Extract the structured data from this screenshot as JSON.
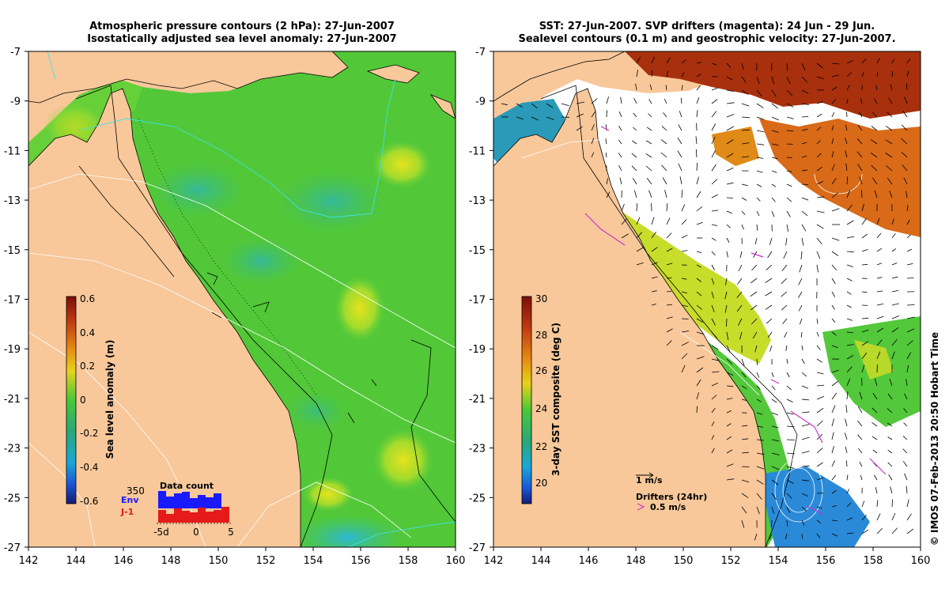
{
  "left_panel": {
    "title_line1": "Atmospheric pressure contours (2 hPa): 27-Jun-2007",
    "title_line2": "Isostatically adjusted sea level anomaly: 27-Jun-2007",
    "colorbar": {
      "label": "Sea level anomaly (m)",
      "ticks": [
        "0.6",
        "0.4",
        "0.2",
        "0",
        "-0.2",
        "-0.4",
        "-0.6"
      ]
    },
    "data_count": {
      "title": "Data count",
      "max_label": "350",
      "env_label": "Env",
      "j1_label": "J-1",
      "x_ticks": [
        "-5d",
        "0",
        "5"
      ],
      "env_color": "#1a1aff",
      "j1_color": "#e61a1a"
    }
  },
  "right_panel": {
    "title_line1": "SST: 27-Jun-2007. SVP drifters (magenta): 24 Jun - 29 Jun.",
    "title_line2": "Sealevel contours (0.1 m) and geostrophic velocity: 27-Jun-2007.",
    "colorbar": {
      "label": "3-day SST composite (deg C)",
      "ticks": [
        "30",
        "28",
        "26",
        "24",
        "22",
        "20"
      ]
    },
    "velocity_scale_label": "1 m/s",
    "drifters_label": "Drifters (24hr)",
    "drifter_scale_label": "0.5 m/s",
    "drifter_color": "#cc33cc"
  },
  "axes": {
    "x_ticks": [
      "142",
      "144",
      "146",
      "148",
      "150",
      "152",
      "154",
      "156",
      "158",
      "160"
    ],
    "y_ticks": [
      "-7",
      "-9",
      "-11",
      "-13",
      "-15",
      "-17",
      "-19",
      "-21",
      "-23",
      "-25",
      "-27"
    ]
  },
  "credit": "© IMOS 07-Feb-2013 20:50 Hobart Time",
  "colors": {
    "land": "#f8c89a",
    "ocean_anomaly_base": "#4fc83a",
    "sst_warm": "#a83a10",
    "sst_cool": "#1a2aa8"
  }
}
